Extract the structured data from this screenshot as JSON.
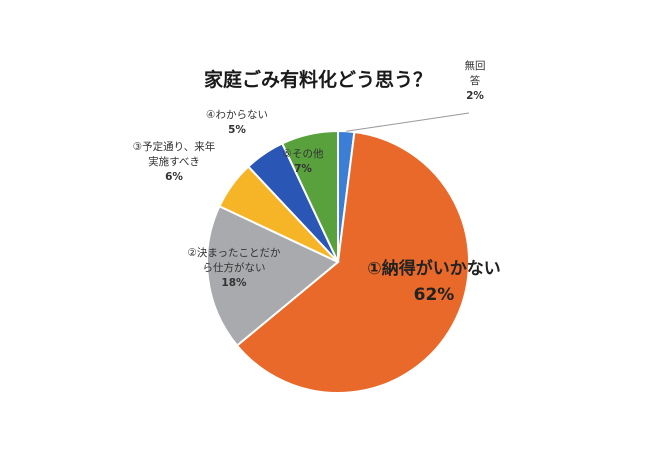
{
  "chart_data": {
    "type": "pie",
    "title": "家庭ごみ有料化どう思う？",
    "slices": [
      {
        "label": "無回答",
        "label_lines": [
          "無回",
          "答"
        ],
        "value": 2,
        "value_label": "2%",
        "color": "#3a7fd5"
      },
      {
        "label": "①納得がいかない",
        "label_lines": [
          "①納得がいかない"
        ],
        "value": 62,
        "value_label": "62%",
        "color": "#e8692a"
      },
      {
        "label": "②決まったことだから仕方がない",
        "label_lines": [
          "②決まったことだか",
          "ら仕方がない"
        ],
        "value": 18,
        "value_label": "18%",
        "color": "#a8aaad"
      },
      {
        "label": "③予定通り、来年実施すべき",
        "label_lines": [
          "③予定通り、来年",
          "実施すべき"
        ],
        "value": 6,
        "value_label": "6%",
        "color": "#f6b526"
      },
      {
        "label": "④わからない",
        "label_lines": [
          "④わからない"
        ],
        "value": 5,
        "value_label": "5%",
        "color": "#2a56b5"
      },
      {
        "label": "⑤その他",
        "label_lines": [
          "⑤その他"
        ],
        "value": 7,
        "value_label": "7%",
        "color": "#58a13d"
      }
    ],
    "legend": "none"
  }
}
